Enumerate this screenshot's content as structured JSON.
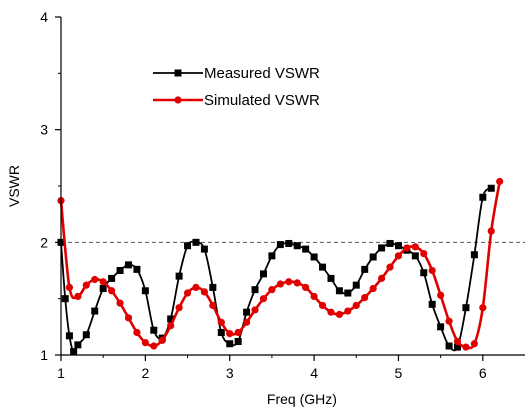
{
  "chart_data": {
    "type": "line",
    "xlabel": "Freq (GHz)",
    "ylabel": "VSWR",
    "xlim": [
      1,
      6.5
    ],
    "ylim": [
      1,
      4
    ],
    "xticks": [
      "1",
      "2",
      "3",
      "4",
      "5",
      "6"
    ],
    "yticks": [
      "1",
      "2",
      "3",
      "4"
    ],
    "reference_line": {
      "y": 2,
      "style": "dashed",
      "color": "#555555"
    },
    "legend_position": "top-center",
    "series": [
      {
        "name": "Measured VSWR",
        "color": "#000000",
        "marker": "square",
        "x": [
          1.0,
          1.05,
          1.1,
          1.15,
          1.2,
          1.3,
          1.4,
          1.5,
          1.6,
          1.7,
          1.8,
          1.9,
          2.0,
          2.1,
          2.2,
          2.3,
          2.4,
          2.5,
          2.6,
          2.7,
          2.8,
          2.9,
          3.0,
          3.1,
          3.2,
          3.3,
          3.4,
          3.5,
          3.6,
          3.7,
          3.8,
          3.9,
          4.0,
          4.1,
          4.2,
          4.3,
          4.4,
          4.5,
          4.6,
          4.7,
          4.8,
          4.9,
          5.0,
          5.1,
          5.2,
          5.3,
          5.4,
          5.5,
          5.6,
          5.7,
          5.8,
          5.9,
          6.0,
          6.1
        ],
        "y": [
          2.0,
          1.5,
          1.17,
          1.03,
          1.09,
          1.18,
          1.39,
          1.59,
          1.68,
          1.75,
          1.8,
          1.76,
          1.57,
          1.22,
          1.15,
          1.32,
          1.7,
          1.97,
          2.0,
          1.94,
          1.6,
          1.2,
          1.1,
          1.12,
          1.38,
          1.58,
          1.72,
          1.88,
          1.98,
          1.99,
          1.97,
          1.94,
          1.87,
          1.78,
          1.68,
          1.57,
          1.55,
          1.62,
          1.76,
          1.87,
          1.95,
          1.99,
          1.97,
          1.93,
          1.88,
          1.73,
          1.45,
          1.25,
          1.08,
          1.07,
          1.42,
          1.89,
          2.4,
          2.48
        ]
      },
      {
        "name": "Simulated VSWR",
        "color": "#e00000",
        "marker": "circle",
        "x": [
          1.0,
          1.1,
          1.2,
          1.3,
          1.4,
          1.5,
          1.6,
          1.7,
          1.8,
          1.9,
          2.0,
          2.1,
          2.2,
          2.3,
          2.4,
          2.5,
          2.6,
          2.7,
          2.8,
          2.9,
          3.0,
          3.1,
          3.2,
          3.3,
          3.4,
          3.5,
          3.6,
          3.7,
          3.8,
          3.9,
          4.0,
          4.1,
          4.2,
          4.3,
          4.4,
          4.5,
          4.6,
          4.7,
          4.8,
          4.9,
          5.0,
          5.1,
          5.2,
          5.3,
          5.4,
          5.5,
          5.6,
          5.7,
          5.8,
          5.9,
          6.0,
          6.1,
          6.2
        ],
        "y": [
          2.37,
          1.6,
          1.52,
          1.62,
          1.67,
          1.65,
          1.57,
          1.46,
          1.33,
          1.2,
          1.11,
          1.08,
          1.13,
          1.26,
          1.42,
          1.55,
          1.6,
          1.56,
          1.44,
          1.29,
          1.19,
          1.2,
          1.29,
          1.4,
          1.5,
          1.58,
          1.63,
          1.65,
          1.64,
          1.6,
          1.52,
          1.44,
          1.38,
          1.36,
          1.39,
          1.44,
          1.51,
          1.59,
          1.68,
          1.78,
          1.88,
          1.95,
          1.96,
          1.9,
          1.75,
          1.53,
          1.3,
          1.12,
          1.07,
          1.1,
          1.42,
          2.1,
          2.54
        ]
      }
    ]
  }
}
